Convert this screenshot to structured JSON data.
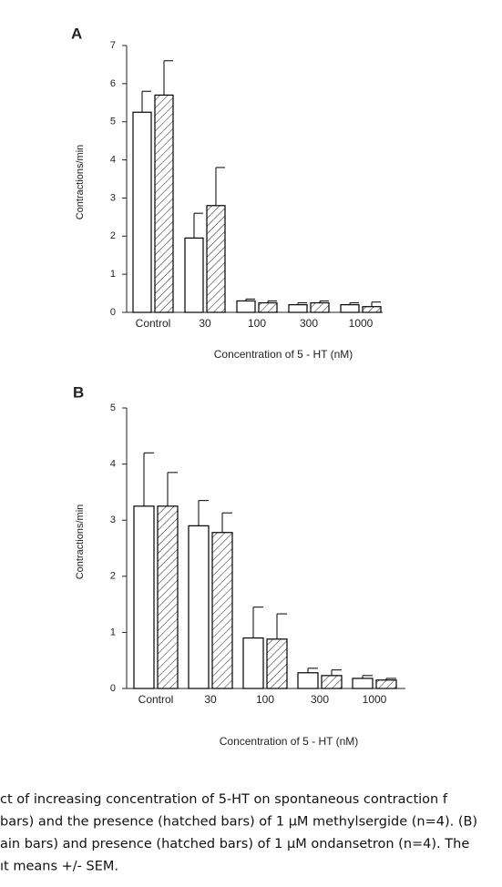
{
  "chart_data": [
    {
      "type": "bar",
      "panel_label": "A",
      "ylabel": "Contractions/min",
      "xlabel": "Concentration of 5 - HT (nM)",
      "categories": [
        "Control",
        "30",
        "100",
        "300",
        "1000"
      ],
      "series": [
        {
          "color": "#000000",
          "hatched": false,
          "values": [
            5.25,
            1.95,
            0.3,
            0.2,
            0.2
          ],
          "errors": [
            0.55,
            0.65,
            0.05,
            0.05,
            0.05
          ]
        },
        {
          "color": "#000000",
          "hatched": true,
          "values": [
            5.7,
            2.8,
            0.25,
            0.25,
            0.15
          ],
          "errors": [
            0.9,
            1.0,
            0.05,
            0.05,
            0.12
          ]
        }
      ],
      "ylim": [
        0,
        7
      ],
      "yticks": [
        0,
        1,
        2,
        3,
        4,
        5,
        6,
        7
      ]
    },
    {
      "type": "bar",
      "panel_label": "B",
      "ylabel": "Contractions/min",
      "xlabel": "Concentration of 5 - HT (nM)",
      "categories": [
        "Control",
        "30",
        "100",
        "300",
        "1000"
      ],
      "series": [
        {
          "color": "#000000",
          "hatched": false,
          "values": [
            3.25,
            2.9,
            0.9,
            0.28,
            0.18
          ],
          "errors": [
            0.95,
            0.45,
            0.55,
            0.08,
            0.05
          ]
        },
        {
          "color": "#000000",
          "hatched": true,
          "values": [
            3.25,
            2.78,
            0.88,
            0.23,
            0.15
          ],
          "errors": [
            0.6,
            0.35,
            0.45,
            0.1,
            0.03
          ]
        }
      ],
      "ylim": [
        0,
        5
      ],
      "yticks": [
        0,
        1,
        2,
        3,
        4,
        5
      ]
    }
  ],
  "caption": {
    "lines": [
      "ct of increasing concentration of 5-HT on spontaneous contraction f",
      " bars) and the presence (hatched bars) of 1 μM methylsergide (n=4). (B)",
      "ain bars) and presence (hatched bars) of 1 μM ondansetron (n=4). The",
      "ıt means +/- SEM."
    ]
  }
}
